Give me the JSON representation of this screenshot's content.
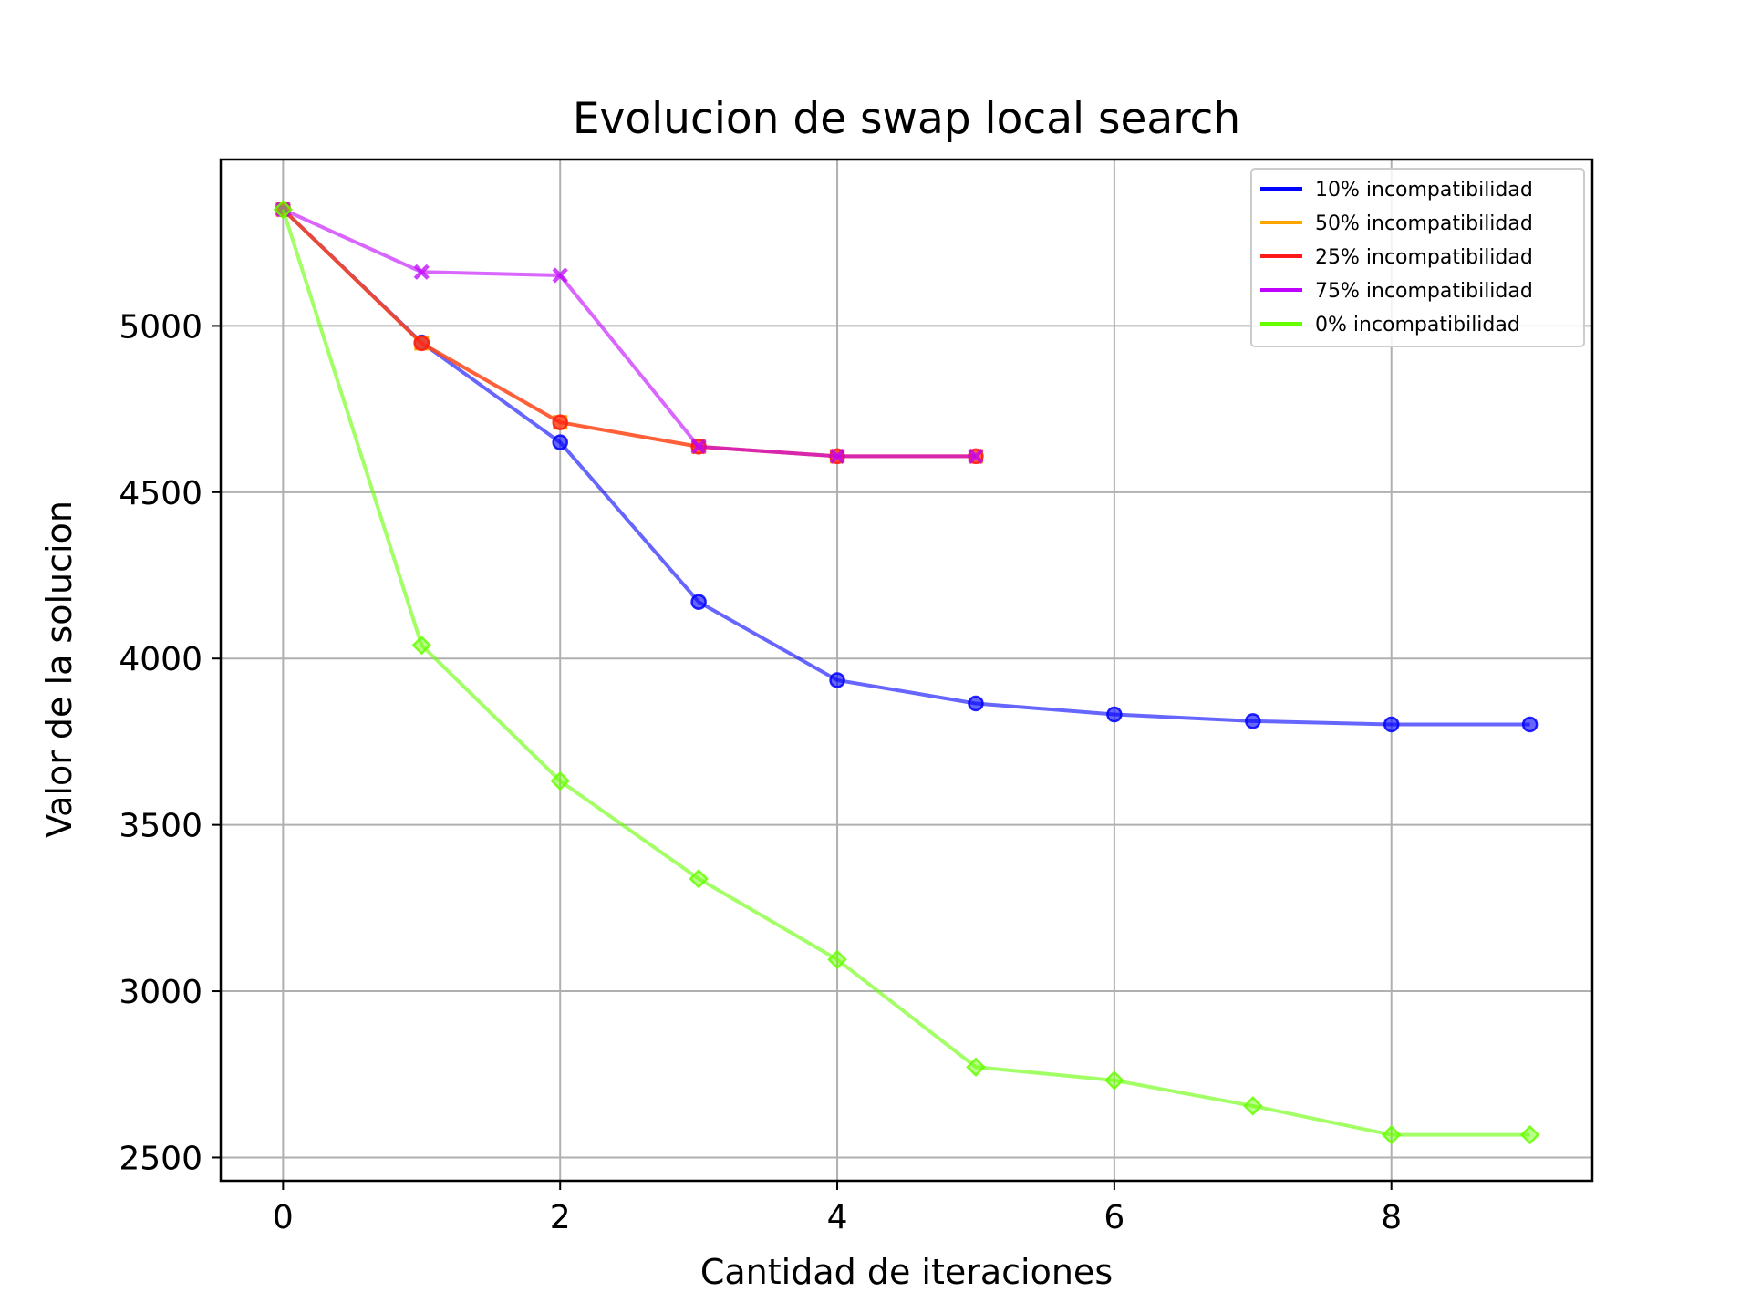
{
  "chart_data": {
    "type": "line",
    "title": "Evolucion de swap local search",
    "xlabel": "Cantidad de iteraciones",
    "ylabel": "Valor de la solucion",
    "xlim": [
      -0.45,
      9.45
    ],
    "ylim": [
      2430,
      5500
    ],
    "xticks": [
      0,
      2,
      4,
      6,
      8
    ],
    "yticks": [
      2500,
      3000,
      3500,
      4000,
      4500,
      5000
    ],
    "grid": true,
    "legend_position": "top-right",
    "series": [
      {
        "name": "10% incompatibilidad",
        "color": "#0000ff",
        "marker": "circle",
        "x": [
          0,
          1,
          2,
          3,
          4,
          5,
          6,
          7,
          8,
          9
        ],
        "y": [
          5350,
          4950,
          4650,
          4170,
          3935,
          3865,
          3832,
          3812,
          3802,
          3802
        ]
      },
      {
        "name": "50% incompatibilidad",
        "color": "#ffa500",
        "marker": "square",
        "x": [
          0,
          1,
          2,
          3,
          4,
          5
        ],
        "y": [
          5350,
          4948,
          4710,
          4637,
          4608,
          4608
        ]
      },
      {
        "name": "25% incompatibilidad",
        "color": "#ff1a1a",
        "marker": "circle",
        "x": [
          0,
          1,
          2,
          3,
          4,
          5
        ],
        "y": [
          5350,
          4948,
          4710,
          4637,
          4608,
          4608
        ]
      },
      {
        "name": "75% incompatibilidad",
        "color": "#bf00ff",
        "marker": "x",
        "x": [
          0,
          1,
          2,
          3,
          4,
          5
        ],
        "y": [
          5350,
          5162,
          5152,
          4637,
          4608,
          4608
        ]
      },
      {
        "name": "0% incompatibilidad",
        "color": "#66ff00",
        "marker": "diamond",
        "x": [
          0,
          1,
          2,
          3,
          4,
          5,
          6,
          7,
          8,
          9
        ],
        "y": [
          5350,
          4040,
          3632,
          3338,
          3095,
          2772,
          2732,
          2655,
          2568,
          2568
        ]
      }
    ]
  }
}
